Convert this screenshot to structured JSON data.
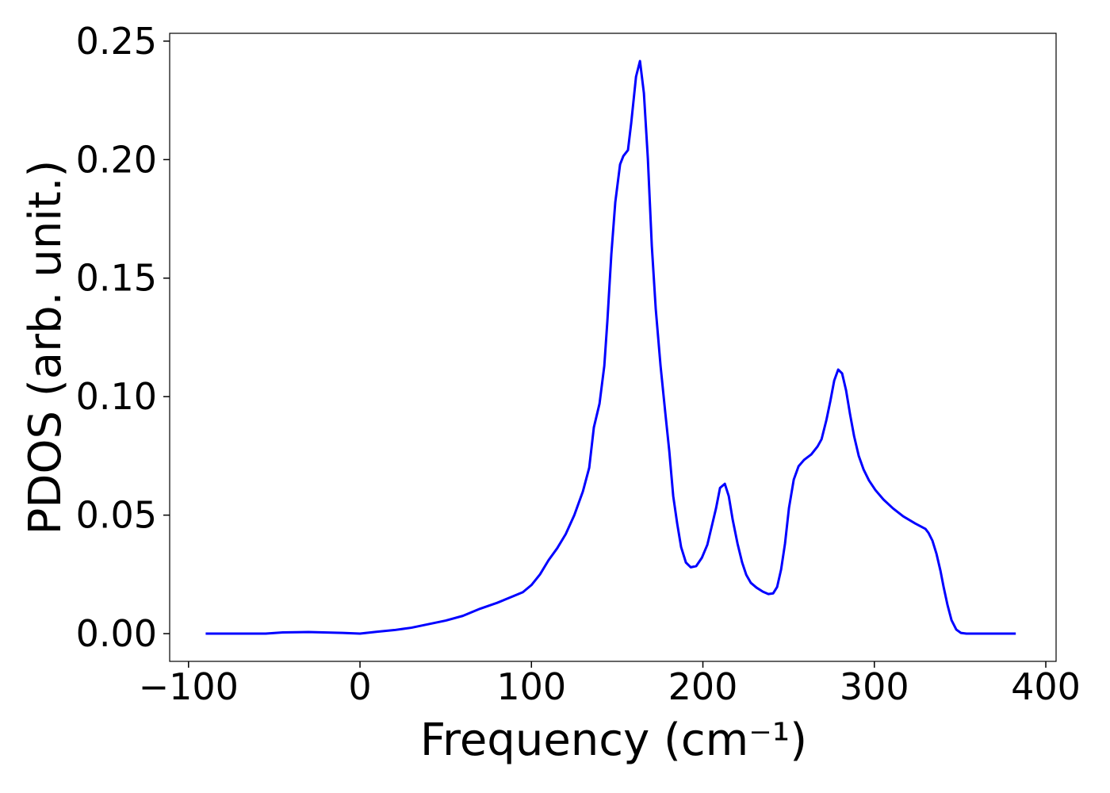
{
  "chart_data": {
    "type": "line",
    "xlabel": "Frequency (cm⁻¹)",
    "ylabel": "PDOS (arb. unit.)",
    "color": "#0000ff",
    "xlim": [
      -111,
      406
    ],
    "ylim": [
      -0.0117,
      0.2533
    ],
    "xticks": [
      {
        "value": -100,
        "label": "−100"
      },
      0,
      100,
      200,
      300,
      400
    ],
    "yticks": [
      {
        "value": 0,
        "label": "0.00"
      },
      0.05,
      {
        "value": 0.1,
        "label": "0.10"
      },
      0.15,
      {
        "value": 0.2,
        "label": "0.20"
      },
      0.25
    ],
    "x": [
      -90,
      -55,
      -45,
      -30,
      -10,
      0,
      10,
      20,
      30,
      40,
      50,
      60,
      70,
      80,
      90,
      95,
      100,
      105,
      110,
      115,
      120,
      125,
      130,
      133.7,
      136.4,
      139.7,
      142.5,
      144.3,
      146.6,
      148.9,
      151.7,
      153.6,
      156.3,
      158.2,
      161.0,
      163.3,
      165.6,
      167.9,
      170.2,
      172.5,
      175.3,
      178.1,
      180.4,
      182.7,
      185.0,
      187.3,
      190.1,
      192.9,
      196.1,
      199.4,
      202.6,
      205.4,
      207.7,
      210.0,
      212.8,
      215.1,
      217.4,
      220.2,
      222.9,
      225.3,
      228.0,
      231.3,
      235.0,
      238.2,
      241.0,
      243.3,
      245.6,
      247.9,
      250.2,
      253.0,
      255.8,
      259.0,
      263.2,
      266.9,
      269.2,
      272.0,
      274.3,
      276.6,
      278.9,
      281.2,
      283.5,
      285.8,
      288.2,
      290.9,
      293.7,
      296.9,
      300.6,
      305.3,
      310.8,
      316.8,
      323.8,
      329.8,
      331.6,
      333.9,
      336.2,
      338.6,
      340.4,
      342.7,
      345.0,
      347.8,
      350.5,
      353.7,
      382.5
    ],
    "values": [
      0,
      0,
      0.0005,
      0.0007,
      0.0003,
      0,
      0.0008,
      0.0015,
      0.0025,
      0.004,
      0.0055,
      0.0075,
      0.0105,
      0.013,
      0.016,
      0.0175,
      0.0205,
      0.025,
      0.031,
      0.036,
      0.042,
      0.05,
      0.06,
      0.07,
      0.087,
      0.097,
      0.113,
      0.132,
      0.16,
      0.182,
      0.198,
      0.2015,
      0.204,
      0.2155,
      0.235,
      0.2416,
      0.228,
      0.2005,
      0.1637,
      0.137,
      0.113,
      0.093,
      0.077,
      0.058,
      0.0465,
      0.0365,
      0.03,
      0.028,
      0.0285,
      0.032,
      0.0375,
      0.046,
      0.053,
      0.0615,
      0.0632,
      0.058,
      0.048,
      0.038,
      0.03,
      0.0248,
      0.0214,
      0.0194,
      0.0177,
      0.0167,
      0.017,
      0.0197,
      0.027,
      0.038,
      0.053,
      0.065,
      0.0706,
      0.0733,
      0.0756,
      0.079,
      0.082,
      0.09,
      0.098,
      0.1068,
      0.1114,
      0.1098,
      0.1027,
      0.0927,
      0.0833,
      0.075,
      0.0693,
      0.0646,
      0.0606,
      0.0566,
      0.0529,
      0.0495,
      0.0465,
      0.0442,
      0.0425,
      0.0392,
      0.0338,
      0.0264,
      0.0197,
      0.012,
      0.0057,
      0.0017,
      0.0003,
      0,
      0
    ]
  }
}
